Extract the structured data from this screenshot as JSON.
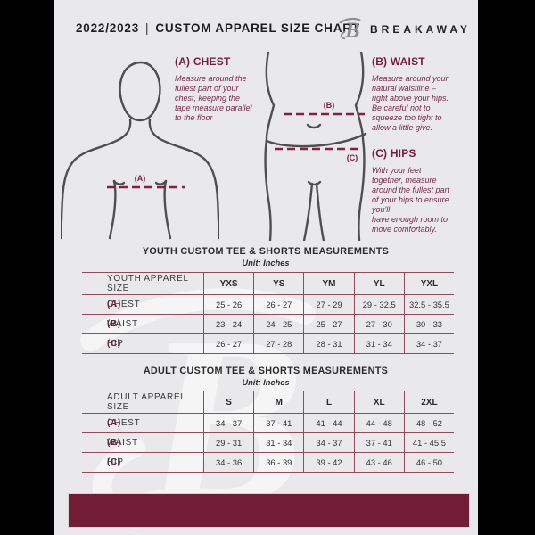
{
  "header": {
    "season": "2022/2023",
    "separator": "|",
    "title": "CUSTOM APPAREL SIZE CHART",
    "brand": "BREAKAWAY",
    "logo_letter": "B"
  },
  "instructions": [
    {
      "key": "(A)",
      "name": "CHEST",
      "text": "Measure around the\nfullest part of your\nchest, keeping the\ntape measure parallel\nto the floor"
    },
    {
      "key": "(B)",
      "name": "WAIST",
      "text": "Measure around your\nnatural waistline –\nright above your hips.\nBe careful not to\nsqueeze too tight to\nallow a little give."
    },
    {
      "key": "(C)",
      "name": "HIPS",
      "text": "With your feet\ntogether, measure\naround the fullest part\nof your hips to ensure\nyou'll\nhave enough room to\nmove comfortably."
    }
  ],
  "diagram_labels": {
    "chest": "(A)",
    "waist": "(B)",
    "hips": "(C)"
  },
  "tables": [
    {
      "title": "YOUTH CUSTOM TEE & SHORTS MEASUREMENTS",
      "unit": "Unit: Inches",
      "size_label": "YOUTH APPAREL SIZE",
      "columns": [
        "YXS",
        "YS",
        "YM",
        "YL",
        "YXL"
      ],
      "rows": [
        {
          "key": "(A)",
          "label": "CHEST",
          "values": [
            "25 - 26",
            "26 - 27",
            "27 - 29",
            "29 - 32.5",
            "32.5 - 35.5"
          ]
        },
        {
          "key": "(B)",
          "label": "WAIST",
          "values": [
            "23 - 24",
            "24 - 25",
            "25 - 27",
            "27 - 30",
            "30 - 33"
          ]
        },
        {
          "key": "(C)",
          "label": "HIP",
          "values": [
            "26 - 27",
            "27 - 28",
            "28 - 31",
            "31 - 34",
            "34 - 37"
          ]
        }
      ]
    },
    {
      "title": "ADULT CUSTOM TEE & SHORTS MEASUREMENTS",
      "unit": "Unit: Inches",
      "size_label": "ADULT APPAREL SIZE",
      "columns": [
        "S",
        "M",
        "L",
        "XL",
        "2XL"
      ],
      "rows": [
        {
          "key": "(A)",
          "label": "CHEST",
          "values": [
            "34 - 37",
            "37 - 41",
            "41 - 44",
            "44 - 48",
            "48 - 52"
          ]
        },
        {
          "key": "(B)",
          "label": "WAIST",
          "values": [
            "29 - 31",
            "31 - 34",
            "34 - 37",
            "37 - 41",
            "41 - 45.5"
          ]
        },
        {
          "key": "(C)",
          "label": "HIP",
          "values": [
            "34 - 36",
            "36 - 39",
            "39 - 42",
            "43 - 46",
            "46 - 50"
          ]
        }
      ]
    }
  ],
  "colors": {
    "maroon": "#7a1d3a",
    "footer_bar": "#721c35",
    "page_bg": "#e9e9eb",
    "ink": "#2c2c2c",
    "table_rule": "#97495c",
    "figure_outline": "#4f4f4f",
    "dash_line": "#8a1f3c"
  }
}
